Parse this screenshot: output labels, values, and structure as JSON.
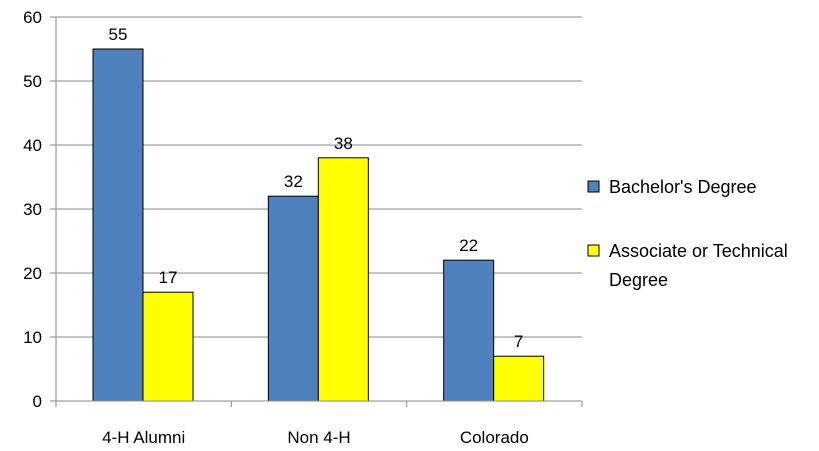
{
  "chart_data": {
    "type": "bar",
    "categories": [
      "4-H Alumni",
      "Non 4-H",
      "Colorado"
    ],
    "series": [
      {
        "name": "Bachelor's Degree",
        "values": [
          55,
          32,
          22
        ],
        "color": "#4f81bd"
      },
      {
        "name": "Associate or Technical Degree",
        "legend_lines": [
          "Associate or Technical",
          "Degree"
        ],
        "values": [
          17,
          38,
          7
        ],
        "color": "#ffff00"
      }
    ],
    "yticks": [
      "0",
      "10",
      "20",
      "30",
      "40",
      "50",
      "60"
    ],
    "ylim": [
      0,
      60
    ],
    "grid": true,
    "legend": "right",
    "data_labels": true
  }
}
